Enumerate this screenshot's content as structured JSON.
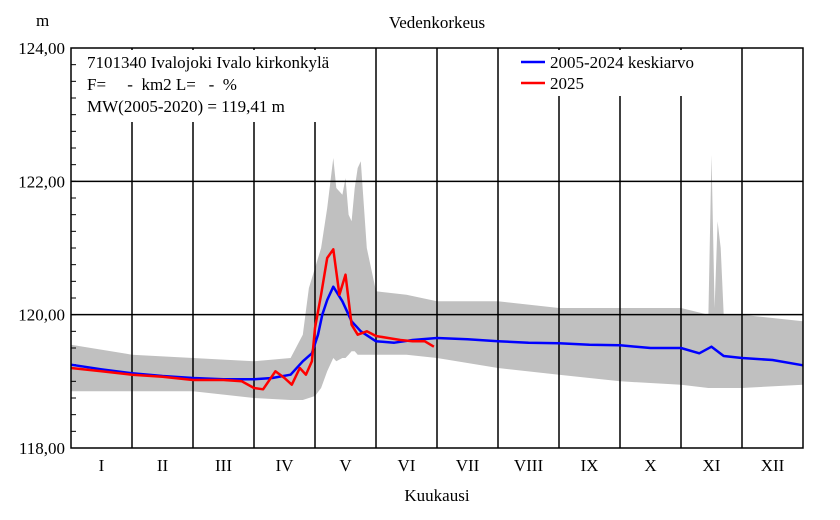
{
  "chart_data": {
    "type": "line",
    "title": "Vedenkorkeus",
    "ylabel": "m",
    "xlabel": "Kuukausi",
    "ylim": [
      118,
      124
    ],
    "yticks": [
      "118,00",
      "120,00",
      "122,00",
      "124,00"
    ],
    "ytick_values": [
      118,
      120,
      122,
      124
    ],
    "months": [
      "I",
      "II",
      "III",
      "IV",
      "V",
      "VI",
      "VII",
      "VIII",
      "IX",
      "X",
      "XI",
      "XII"
    ],
    "station": {
      "name": "7101340 Ivalojoki Ivalo kirkonkylä",
      "area": "F=     -  km2 L=   -  %",
      "mw": "MW(2005-2020) = 119,41 m"
    },
    "legend_position": "top-right",
    "grid": true,
    "series": [
      {
        "name": "2005-2024 keskiarvo",
        "color": "#0000ff",
        "x": [
          0,
          0.5,
          1.0,
          1.5,
          2.0,
          2.5,
          3.0,
          3.3,
          3.6,
          3.8,
          3.95,
          4.05,
          4.12,
          4.2,
          4.3,
          4.45,
          4.6,
          4.75,
          5.0,
          5.3,
          5.6,
          6.0,
          6.5,
          7.0,
          7.5,
          8.0,
          8.5,
          9.0,
          9.5,
          10.0,
          10.3,
          10.5,
          10.7,
          11.0,
          11.5,
          12.0
        ],
        "values": [
          119.25,
          119.18,
          119.12,
          119.08,
          119.05,
          119.03,
          119.03,
          119.05,
          119.1,
          119.3,
          119.42,
          119.7,
          120.0,
          120.22,
          120.42,
          120.2,
          119.9,
          119.75,
          119.6,
          119.58,
          119.62,
          119.65,
          119.63,
          119.6,
          119.58,
          119.57,
          119.55,
          119.54,
          119.5,
          119.5,
          119.42,
          119.52,
          119.38,
          119.35,
          119.32,
          119.24
        ]
      },
      {
        "name": "2025",
        "color": "#ff0000",
        "x": [
          0,
          0.5,
          1.0,
          1.5,
          2.0,
          2.5,
          2.8,
          3.0,
          3.15,
          3.35,
          3.5,
          3.62,
          3.75,
          3.85,
          3.95,
          4.0,
          4.1,
          4.2,
          4.3,
          4.4,
          4.5,
          4.6,
          4.7,
          4.85,
          5.0,
          5.2,
          5.4,
          5.6,
          5.8,
          5.95
        ],
        "values": [
          119.2,
          119.15,
          119.1,
          119.07,
          119.02,
          119.02,
          119.0,
          118.9,
          118.88,
          119.15,
          119.05,
          118.95,
          119.2,
          119.1,
          119.3,
          119.8,
          120.3,
          120.85,
          120.98,
          120.3,
          120.6,
          119.85,
          119.7,
          119.75,
          119.68,
          119.65,
          119.62,
          119.6,
          119.6,
          119.52
        ]
      }
    ],
    "range_band": {
      "color": "#c0c0c0",
      "x": [
        0,
        1.0,
        2.0,
        3.0,
        3.6,
        3.8,
        3.9,
        4.0,
        4.1,
        4.2,
        4.3,
        4.35,
        4.45,
        4.5,
        4.55,
        4.6,
        4.65,
        4.7,
        4.75,
        4.85,
        5.0,
        5.5,
        6.0,
        7.0,
        8.0,
        9.0,
        10.0,
        10.45,
        10.5,
        10.55,
        10.6,
        10.65,
        10.7,
        11.0,
        12.0
      ],
      "upper": [
        119.55,
        119.4,
        119.35,
        119.3,
        119.35,
        119.7,
        120.4,
        120.7,
        121.0,
        121.6,
        122.35,
        121.9,
        121.8,
        122.05,
        121.5,
        121.4,
        121.9,
        122.2,
        122.3,
        121.0,
        120.35,
        120.3,
        120.2,
        120.2,
        120.1,
        120.1,
        120.1,
        120.0,
        122.4,
        120.1,
        121.4,
        121.0,
        120.0,
        120.0,
        119.9
      ],
      "lower": [
        118.85,
        118.85,
        118.85,
        118.75,
        118.72,
        118.72,
        118.75,
        118.78,
        118.9,
        119.15,
        119.35,
        119.3,
        119.35,
        119.35,
        119.4,
        119.45,
        119.45,
        119.4,
        119.4,
        119.4,
        119.4,
        119.4,
        119.35,
        119.2,
        119.1,
        119.0,
        118.95,
        118.9,
        118.9,
        118.9,
        118.9,
        118.9,
        118.9,
        118.9,
        118.95
      ]
    }
  }
}
